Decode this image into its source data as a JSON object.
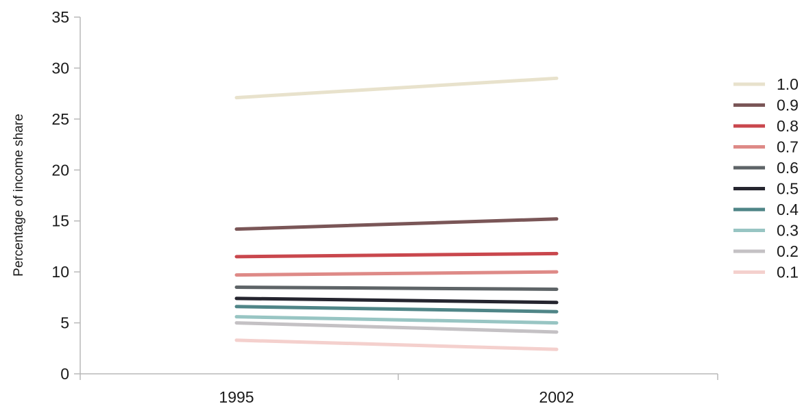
{
  "chart_data": {
    "type": "line",
    "title": "",
    "xlabel": "",
    "ylabel": "Percentage of income share",
    "x": [
      "1995",
      "2002"
    ],
    "ylim": [
      0,
      35
    ],
    "yticks": [
      0,
      5,
      10,
      15,
      20,
      25,
      30,
      35
    ],
    "grid": false,
    "legend_position": "right",
    "series": [
      {
        "name": "1.0",
        "color": "#e8e2cc",
        "values": [
          27.1,
          29.0
        ]
      },
      {
        "name": "0.9",
        "color": "#7a5657",
        "values": [
          14.2,
          15.2
        ]
      },
      {
        "name": "0.8",
        "color": "#c9474d",
        "values": [
          11.5,
          11.8
        ]
      },
      {
        "name": "0.7",
        "color": "#de8a87",
        "values": [
          9.7,
          10.0
        ]
      },
      {
        "name": "0.6",
        "color": "#5e6467",
        "values": [
          8.5,
          8.3
        ]
      },
      {
        "name": "0.5",
        "color": "#25252f",
        "values": [
          7.4,
          7.0
        ]
      },
      {
        "name": "0.4",
        "color": "#4f8587",
        "values": [
          6.6,
          6.1
        ]
      },
      {
        "name": "0.3",
        "color": "#98c5c3",
        "values": [
          5.6,
          5.0
        ]
      },
      {
        "name": "0.2",
        "color": "#c4c1c4",
        "values": [
          5.0,
          4.1
        ]
      },
      {
        "name": "0.1",
        "color": "#f4d0cd",
        "values": [
          3.3,
          2.4
        ]
      }
    ]
  }
}
